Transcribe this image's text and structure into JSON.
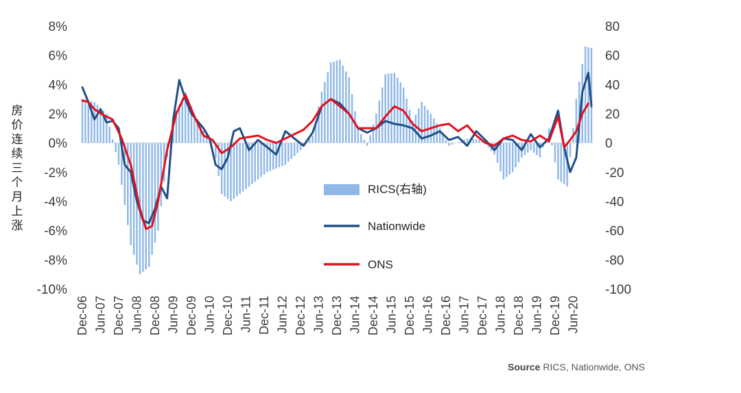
{
  "chart_data": {
    "type": "bar",
    "title": "",
    "ylabel": "房价连续三个月上涨",
    "source_label": "Source",
    "source_text": "RICS, Nationwide, ONS",
    "left_axis": {
      "min": -10,
      "max": 8,
      "ticks": [
        "8%",
        "6%",
        "4%",
        "2%",
        "0%",
        "-2%",
        "-4%",
        "-6%",
        "-8%",
        "-10%"
      ]
    },
    "right_axis": {
      "min": -100,
      "max": 80,
      "ticks": [
        "80",
        "60",
        "40",
        "20",
        "0",
        "-20",
        "-40",
        "-60",
        "-80",
        "-100"
      ]
    },
    "x_start": 2006.917,
    "x_end": 2020.917,
    "x_ticks": [
      "Dec-06",
      "Jun-07",
      "Dec-07",
      "Jun-08",
      "Dec-08",
      "Jun-09",
      "Dec-09",
      "Jun-10",
      "Dec-10",
      "Jun-11",
      "Dec-11",
      "Jun-12",
      "Dec-12",
      "Jun-13",
      "Dec-13",
      "Jun-14",
      "Dec-14",
      "Jun-15",
      "Dec-15",
      "Jun-16",
      "Dec-16",
      "Jun-17",
      "Dec-17",
      "Jun-18",
      "Dec-18",
      "Jun-19",
      "Dec-19",
      "Jun-20"
    ],
    "legend": [
      {
        "name": "RICS(右轴)",
        "kind": "bar"
      },
      {
        "name": "Nationwide",
        "kind": "line"
      },
      {
        "name": "ONS",
        "kind": "line"
      }
    ],
    "colors": {
      "rics": "#8fb8e6",
      "nationwide": "#1f4e86",
      "ons": "#e0101c"
    },
    "series": [
      {
        "name": "RICS(右轴)",
        "axis": "right",
        "type": "bar",
        "t": [
          2006.917,
          2007.25,
          2007.583,
          2007.917,
          2008.25,
          2008.5,
          2008.75,
          2009.0,
          2009.25,
          2009.5,
          2009.75,
          2010.0,
          2010.25,
          2010.5,
          2010.75,
          2011.0,
          2011.5,
          2012.0,
          2012.5,
          2012.917,
          2013.25,
          2013.5,
          2013.75,
          2014.0,
          2014.25,
          2014.5,
          2014.75,
          2015.0,
          2015.25,
          2015.5,
          2015.75,
          2016.0,
          2016.25,
          2016.5,
          2016.75,
          2017.0,
          2017.5,
          2017.917,
          2018.25,
          2018.5,
          2018.75,
          2019.0,
          2019.25,
          2019.5,
          2019.75,
          2020.0,
          2020.25,
          2020.5,
          2020.75,
          2020.917
        ],
        "values": [
          30,
          28,
          20,
          -15,
          -70,
          -90,
          -85,
          -60,
          -10,
          22,
          35,
          20,
          8,
          2,
          -35,
          -40,
          -30,
          -20,
          -15,
          -5,
          5,
          35,
          55,
          57,
          45,
          10,
          -2,
          20,
          47,
          48,
          38,
          15,
          28,
          20,
          10,
          -2,
          3,
          2,
          -8,
          -25,
          -20,
          -10,
          -5,
          -10,
          10,
          -25,
          -30,
          30,
          66,
          65
        ]
      },
      {
        "name": "Nationwide",
        "axis": "left",
        "type": "line",
        "t": [
          2006.917,
          2007.083,
          2007.25,
          2007.417,
          2007.583,
          2007.75,
          2007.917,
          2008.083,
          2008.25,
          2008.417,
          2008.583,
          2008.75,
          2008.917,
          2009.083,
          2009.25,
          2009.417,
          2009.583,
          2009.75,
          2009.917,
          2010.083,
          2010.25,
          2010.417,
          2010.583,
          2010.75,
          2010.917,
          2011.083,
          2011.25,
          2011.5,
          2011.75,
          2012.0,
          2012.25,
          2012.5,
          2012.75,
          2013.0,
          2013.25,
          2013.5,
          2013.75,
          2014.0,
          2014.25,
          2014.5,
          2014.75,
          2015.0,
          2015.25,
          2015.5,
          2015.75,
          2016.0,
          2016.25,
          2016.5,
          2016.75,
          2017.0,
          2017.25,
          2017.5,
          2017.75,
          2018.0,
          2018.25,
          2018.5,
          2018.75,
          2019.0,
          2019.25,
          2019.5,
          2019.75,
          2020.0,
          2020.167,
          2020.333,
          2020.5,
          2020.667,
          2020.833,
          2020.917
        ],
        "values": [
          3.8,
          2.8,
          1.6,
          2.3,
          1.4,
          1.5,
          1.0,
          -1.5,
          -2.0,
          -4.0,
          -5.3,
          -5.5,
          -4.5,
          -3.0,
          -3.8,
          1.6,
          4.3,
          3.0,
          2.0,
          1.5,
          1.0,
          0.3,
          -1.5,
          -1.8,
          -1.0,
          0.8,
          1.0,
          -0.5,
          0.2,
          -0.3,
          -0.8,
          0.8,
          0.3,
          -0.2,
          0.7,
          2.5,
          3.0,
          2.7,
          2.0,
          1.0,
          0.7,
          1.0,
          1.5,
          1.3,
          1.2,
          1.0,
          0.3,
          0.5,
          0.8,
          0.2,
          0.4,
          -0.2,
          0.8,
          0.2,
          -0.5,
          0.3,
          0.2,
          -0.5,
          0.6,
          -0.3,
          0.3,
          2.2,
          -0.3,
          -2.0,
          -1.0,
          3.5,
          4.8,
          2.5
        ]
      },
      {
        "name": "ONS",
        "axis": "left",
        "type": "line",
        "t": [
          2006.917,
          2007.083,
          2007.25,
          2007.5,
          2007.75,
          2008.0,
          2008.25,
          2008.5,
          2008.667,
          2008.833,
          2009.0,
          2009.25,
          2009.5,
          2009.75,
          2010.0,
          2010.25,
          2010.5,
          2010.75,
          2011.0,
          2011.25,
          2011.5,
          2011.75,
          2012.0,
          2012.25,
          2012.5,
          2012.75,
          2013.0,
          2013.25,
          2013.5,
          2013.75,
          2014.0,
          2014.25,
          2014.5,
          2014.75,
          2015.0,
          2015.25,
          2015.5,
          2015.75,
          2016.0,
          2016.25,
          2016.5,
          2016.75,
          2017.0,
          2017.25,
          2017.5,
          2017.75,
          2018.0,
          2018.25,
          2018.5,
          2018.75,
          2019.0,
          2019.25,
          2019.5,
          2019.75,
          2020.0,
          2020.167,
          2020.333,
          2020.5,
          2020.667,
          2020.833
        ],
        "values": [
          2.9,
          2.8,
          2.3,
          1.9,
          1.6,
          0.3,
          -1.5,
          -4.5,
          -5.9,
          -5.7,
          -4.0,
          -0.5,
          2.0,
          3.3,
          1.8,
          0.5,
          0.2,
          -0.7,
          -0.3,
          0.3,
          0.4,
          0.5,
          0.2,
          0.0,
          0.3,
          0.6,
          0.9,
          1.5,
          2.5,
          3.0,
          2.5,
          2.0,
          1.0,
          1.0,
          1.0,
          1.8,
          2.5,
          2.2,
          1.3,
          0.8,
          1.0,
          1.2,
          1.3,
          0.8,
          1.2,
          0.5,
          0.0,
          -0.2,
          0.3,
          0.5,
          0.2,
          0.1,
          0.5,
          0.1,
          1.8,
          -0.3,
          0.2,
          0.8,
          2.0,
          2.7
        ]
      }
    ]
  }
}
